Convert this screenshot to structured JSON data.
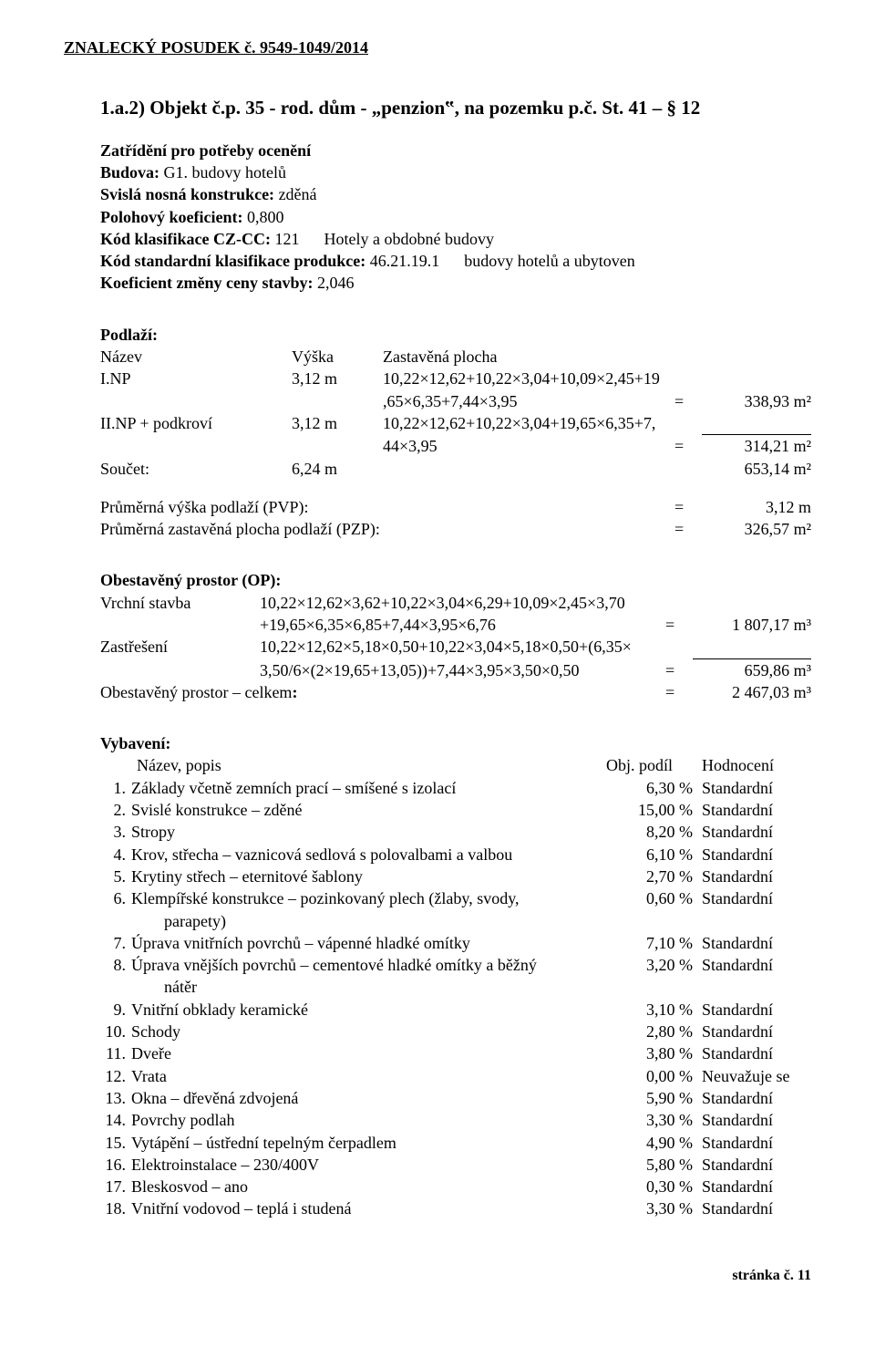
{
  "header": "ZNALECKÝ   POSUDEK č. 9549-1049/2014",
  "section_title": "1.a.2)  Objekt č.p. 35 - rod. dům - „penzion‟, na pozemku p.č. St. 41 – § 12",
  "zatrideni_heading": "Zatřídění pro potřeby ocenění",
  "budova_label": "Budova:",
  "budova_value": "G1. budovy hotelů",
  "svisla_label": "Svislá nosná konstrukce:",
  "svisla_value": "zděná",
  "polohovy_label": "Polohový koeficient:",
  "polohovy_value": "0,800",
  "kod_czcc_label": "Kód klasifikace CZ-CC:",
  "kod_czcc_value": "121",
  "kod_czcc_desc": "Hotely a obdobné budovy",
  "kod_std_label": "Kód standardní klasifikace produkce:",
  "kod_std_value": "46.21.19.1",
  "kod_std_desc": "budovy hotelů a ubytoven",
  "koef_label": "Koeficient změny ceny stavby:",
  "koef_value": "2,046",
  "podlazi_heading": "Podlaží:",
  "podlazi_cols": {
    "name": "Název",
    "height": "Výška",
    "area": "Zastavěná plocha"
  },
  "podlazi": [
    {
      "name": "I.NP",
      "height": "3,12 m",
      "f1": "10,22×12,62+10,22×3,04+10,09×2,45+19",
      "f2": ",65×6,35+7,44×3,95",
      "eq": "=",
      "val": "338,93 m²"
    },
    {
      "name": "II.NP + podkroví",
      "height": "3,12 m",
      "f1": "10,22×12,62+10,22×3,04+19,65×6,35+7,",
      "f2": "44×3,95",
      "eq": "=",
      "val": "314,21 m²"
    }
  ],
  "soucet_name": "Součet:",
  "soucet_height": "6,24 m",
  "soucet_val": "653,14 m²",
  "pvp_label": "Průměrná výška podlaží (PVP):",
  "pvp_eq": "=",
  "pvp_val": "3,12 m",
  "pzp_label": "Průměrná zastavěná plocha podlaží (PZP):",
  "pzp_eq": "=",
  "pzp_val": "326,57 m²",
  "op_heading": "Obestavěný prostor (OP):",
  "op_rows": [
    {
      "name": "Vrchní stavba",
      "f1": "10,22×12,62×3,62+10,22×3,04×6,29+10,09×2,45×3,70",
      "f2": "+19,65×6,35×6,85+7,44×3,95×6,76",
      "eq": "=",
      "val": "1 807,17 m³"
    },
    {
      "name": "Zastřešení",
      "f1": "10,22×12,62×5,18×0,50+10,22×3,04×5,18×0,50+(6,35×",
      "f2": "3,50/6×(2×19,65+13,05))+7,44×3,95×3,50×0,50",
      "eq": "=",
      "val": "659,86 m³"
    }
  ],
  "op_total_label": "Obestavěný prostor – celkem:",
  "op_total_eq": "=",
  "op_total_val": "2 467,03 m³",
  "vyb_heading": "Vybavení:",
  "vyb_head_cols": {
    "name": "Název, popis",
    "podil": "Obj. podíl",
    "hodnoceni": "Hodnocení"
  },
  "vyb": [
    {
      "n": "1.",
      "t": "Základy včetně zemních prací – smíšené s izolací",
      "p": "6,30 %",
      "h": "Standardní"
    },
    {
      "n": "2.",
      "t": "Svislé konstrukce – zděné",
      "p": "15,00 %",
      "h": "Standardní"
    },
    {
      "n": "3.",
      "t": "Stropy",
      "p": "8,20 %",
      "h": "Standardní"
    },
    {
      "n": "4.",
      "t": "Krov, střecha – vaznicová sedlová s polovalbami a valbou",
      "p": "6,10 %",
      "h": "Standardní"
    },
    {
      "n": "5.",
      "t": "Krytiny střech – eternitové šablony",
      "p": "2,70 %",
      "h": "Standardní"
    },
    {
      "n": "6.",
      "t": "Klempířské konstrukce – pozinkovaný plech (žlaby, svody,",
      "p": "0,60 %",
      "h": "Standardní"
    },
    {
      "n": "",
      "t": "        parapety)",
      "p": "",
      "h": ""
    },
    {
      "n": "7.",
      "t": "Úprava vnitřních povrchů – vápenné hladké omítky",
      "p": "7,10 %",
      "h": "Standardní"
    },
    {
      "n": "8.",
      "t": "Úprava vnějších povrchů – cementové hladké omítky a běžný",
      "p": "3,20 %",
      "h": "Standardní"
    },
    {
      "n": "",
      "t": "        nátěr",
      "p": "",
      "h": ""
    },
    {
      "n": "9.",
      "t": "Vnitřní obklady keramické",
      "p": "3,10 %",
      "h": "Standardní"
    },
    {
      "n": "10.",
      "t": "Schody",
      "p": "2,80 %",
      "h": "Standardní"
    },
    {
      "n": "11.",
      "t": "Dveře",
      "p": "3,80 %",
      "h": "Standardní"
    },
    {
      "n": "12.",
      "t": "Vrata",
      "p": "0,00 %",
      "h": "Neuvažuje se"
    },
    {
      "n": "13.",
      "t": "Okna – dřevěná zdvojená",
      "p": "5,90 %",
      "h": "Standardní"
    },
    {
      "n": "14.",
      "t": "Povrchy podlah",
      "p": "3,30 %",
      "h": "Standardní"
    },
    {
      "n": "15.",
      "t": "Vytápění – ústřední tepelným čerpadlem",
      "p": "4,90 %",
      "h": "Standardní"
    },
    {
      "n": "16.",
      "t": "Elektroinstalace – 230/400V",
      "p": "5,80 %",
      "h": "Standardní"
    },
    {
      "n": "17.",
      "t": "Bleskosvod – ano",
      "p": "0,30 %",
      "h": "Standardní"
    },
    {
      "n": "18.",
      "t": "Vnitřní vodovod – teplá i studená",
      "p": "3,30 %",
      "h": "Standardní"
    }
  ],
  "footer": "stránka č. 11"
}
